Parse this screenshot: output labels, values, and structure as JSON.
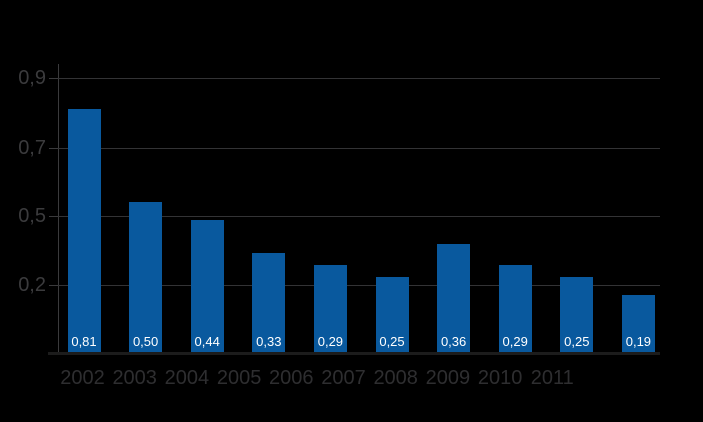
{
  "colors": {
    "background": "#000000",
    "bar": "#09599e",
    "gridline": "#333335",
    "axis_line": "#3a3a3c",
    "baseline": "#1c1c1c",
    "y_tick_label": "#3b3b3d",
    "x_tick_label": "#2e2e30",
    "bar_value_label": "#ffffff"
  },
  "chart_data": {
    "type": "bar",
    "categories": [
      "2002",
      "2003",
      "2004",
      "2005",
      "2006",
      "2007",
      "2008",
      "2009",
      "2010",
      "2011"
    ],
    "values": [
      0.81,
      0.5,
      0.44,
      0.33,
      0.29,
      0.25,
      0.36,
      0.29,
      0.25,
      0.19
    ],
    "value_labels": [
      "0,81",
      "0,50",
      "0,44",
      "0,33",
      "0,29",
      "0,25",
      "0,36",
      "0,29",
      "0,25",
      "0,19"
    ],
    "y_tick_labels": [
      "0,9",
      "0,7",
      "0,5",
      "0,2"
    ],
    "title": "",
    "xlabel": "",
    "ylabel": "",
    "ylim": [
      0,
      1.0
    ],
    "grid": true,
    "legend": null,
    "decimal_style": "comma"
  }
}
